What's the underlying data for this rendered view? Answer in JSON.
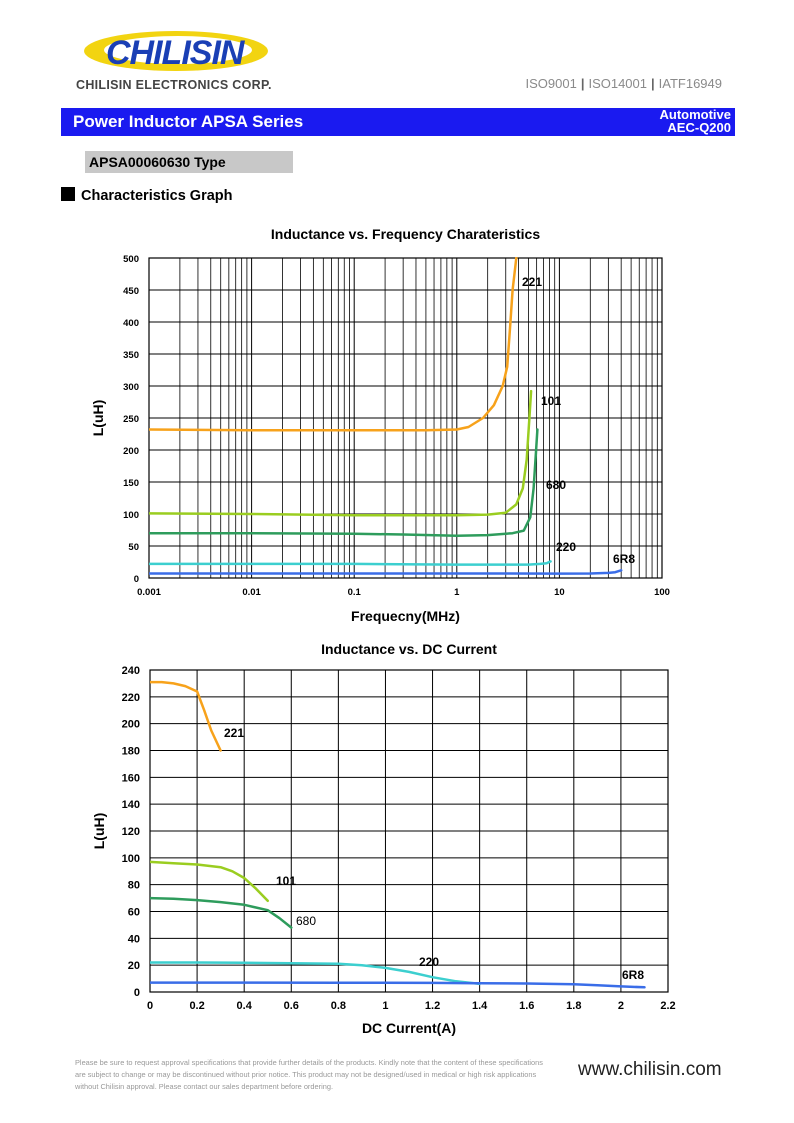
{
  "header": {
    "logo_text": "CHILISIN",
    "company": "CHILISIN ELECTRONICS CORP.",
    "certifications": [
      "ISO9001",
      "ISO14001",
      "IATF16949"
    ]
  },
  "banner": {
    "title": "Power Inductor  APSA Series",
    "automotive": "Automotive",
    "aec": "AEC-Q200"
  },
  "type_label": "APSA00060630 Type",
  "section_title": "Characteristics Graph",
  "colors": {
    "banner_blue": "#1a1af0",
    "221": "#f7a21b",
    "101": "#9acd20",
    "680": "#2e9c5c",
    "220": "#3ccfcf",
    "6R8": "#3a6de8"
  },
  "chart_data": [
    {
      "type": "line",
      "title": "Inductance vs. Frequency Charateristics",
      "xlabel": "Frequecny(MHz)",
      "ylabel": "L(uH)",
      "xscale": "log",
      "xlim": [
        0.001,
        100
      ],
      "ylim": [
        0,
        500
      ],
      "grid": true,
      "x_ticks": [
        "0.001",
        "0.01",
        "0.1",
        "1",
        "10",
        "100"
      ],
      "y_ticks": [
        "0",
        "50",
        "100",
        "150",
        "200",
        "250",
        "300",
        "350",
        "400",
        "450",
        "500"
      ],
      "series": [
        {
          "name": "221",
          "x": [
            0.001,
            0.01,
            0.1,
            0.5,
            1,
            1.3,
            1.8,
            2.3,
            2.8,
            3.1,
            3.3,
            3.5,
            3.8
          ],
          "y": [
            232,
            231,
            231,
            231,
            232,
            236,
            250,
            270,
            300,
            330,
            390,
            450,
            500
          ]
        },
        {
          "name": "101",
          "x": [
            0.001,
            0.01,
            0.1,
            1,
            2,
            3,
            3.8,
            4.4,
            4.8,
            5.1,
            5.3
          ],
          "y": [
            101,
            100,
            98,
            98,
            99,
            102,
            115,
            140,
            185,
            250,
            292
          ]
        },
        {
          "name": "680",
          "x": [
            0.001,
            0.01,
            0.1,
            0.3,
            1,
            2,
            3.5,
            4.5,
            5.2,
            5.6,
            5.9,
            6.1
          ],
          "y": [
            70,
            70,
            69,
            68,
            66,
            67,
            70,
            74,
            95,
            140,
            195,
            232
          ]
        },
        {
          "name": "220",
          "x": [
            0.001,
            0.01,
            0.1,
            1,
            3,
            5,
            6.5,
            7.5,
            8.2
          ],
          "y": [
            22,
            22,
            22,
            21,
            21,
            21,
            22,
            23,
            26
          ]
        },
        {
          "name": "6R8",
          "x": [
            0.001,
            0.01,
            0.1,
            1,
            10,
            20,
            30,
            35,
            40
          ],
          "y": [
            7,
            7,
            7,
            7,
            6.8,
            7,
            8,
            9,
            12
          ]
        }
      ],
      "labels": [
        {
          "text": "221",
          "series": "221"
        },
        {
          "text": "101",
          "series": "101"
        },
        {
          "text": "680",
          "series": "680"
        },
        {
          "text": "220",
          "series": "220"
        },
        {
          "text": "6R8",
          "series": "6R8"
        }
      ]
    },
    {
      "type": "line",
      "title": "Inductance vs. DC Current",
      "xlabel": "DC Current(A)",
      "ylabel": "L(uH)",
      "xlim": [
        0,
        2.2
      ],
      "ylim": [
        0,
        240
      ],
      "grid": true,
      "x_ticks": [
        "0",
        "0.2",
        "0.4",
        "0.6",
        "0.8",
        "1",
        "1.2",
        "1.4",
        "1.6",
        "1.8",
        "2",
        "2.2"
      ],
      "y_ticks": [
        "0",
        "20",
        "40",
        "60",
        "80",
        "100",
        "120",
        "140",
        "160",
        "180",
        "200",
        "220",
        "240"
      ],
      "series": [
        {
          "name": "221",
          "x": [
            0,
            0.05,
            0.1,
            0.15,
            0.2,
            0.23,
            0.26,
            0.3
          ],
          "y": [
            231,
            231,
            230,
            228,
            224,
            210,
            195,
            180
          ]
        },
        {
          "name": "101",
          "x": [
            0,
            0.1,
            0.2,
            0.3,
            0.35,
            0.4,
            0.45,
            0.5
          ],
          "y": [
            97,
            96,
            95,
            93,
            90,
            85,
            77,
            68
          ]
        },
        {
          "name": "680",
          "x": [
            0,
            0.1,
            0.2,
            0.3,
            0.4,
            0.5,
            0.55,
            0.6
          ],
          "y": [
            70,
            69.5,
            68.5,
            67,
            65,
            61,
            55,
            48
          ]
        },
        {
          "name": "220",
          "x": [
            0,
            0.2,
            0.4,
            0.6,
            0.8,
            0.9,
            1.0,
            1.1,
            1.2,
            1.3,
            1.4
          ],
          "y": [
            22,
            22,
            21.8,
            21.5,
            21,
            20,
            18,
            15,
            11,
            8,
            6
          ]
        },
        {
          "name": "6R8",
          "x": [
            0,
            0.4,
            0.8,
            1.2,
            1.4,
            1.6,
            1.8,
            1.9,
            2.0,
            2.1
          ],
          "y": [
            7,
            7,
            6.9,
            6.8,
            6.5,
            6.3,
            5.8,
            5,
            4.2,
            3.5
          ]
        }
      ],
      "labels": [
        {
          "text": "221",
          "series": "221"
        },
        {
          "text": "101",
          "series": "101"
        },
        {
          "text": "680",
          "series": "680"
        },
        {
          "text": "220",
          "series": "220"
        },
        {
          "text": "6R8",
          "series": "6R8"
        }
      ]
    }
  ],
  "footer": {
    "disclaimer_lines": [
      "Please be sure to request approval specifications that provide further details of the products. Kindly note that the content of these specifications",
      "are subject to change or may be discontinued without prior notice. This product may not be designed/used in medical or high risk applications",
      "without Chilisin approval. Please contact our sales department before ordering."
    ],
    "website": "www.chilisin.com"
  }
}
